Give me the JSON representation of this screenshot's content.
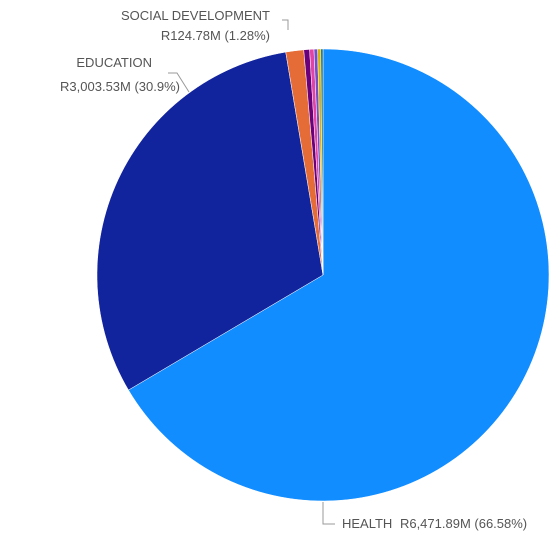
{
  "chart_data": {
    "type": "pie",
    "start_angle_deg": 0,
    "direction": "clockwise",
    "slices": [
      {
        "name": "HEALTH",
        "value": 6471.89,
        "percent": 66.58,
        "value_label": "R6,471.89M (66.58%)",
        "color": "#118DFF",
        "labeled": true
      },
      {
        "name": "EDUCATION",
        "value": 3003.53,
        "percent": 30.9,
        "value_label": "R3,003.53M (30.9%)",
        "color": "#12239E",
        "labeled": true
      },
      {
        "name": "SOCIAL DEVELOPMENT",
        "value": 124.78,
        "percent": 1.28,
        "value_label": "R124.78M (1.28%)",
        "color": "#E66C37",
        "labeled": true
      },
      {
        "name": "",
        "value": 40,
        "percent": 0.41,
        "value_label": "",
        "color": "#6B007B",
        "labeled": false
      },
      {
        "name": "",
        "value": 30,
        "percent": 0.31,
        "value_label": "",
        "color": "#E044A7",
        "labeled": false
      },
      {
        "name": "",
        "value": 25,
        "percent": 0.26,
        "value_label": "",
        "color": "#744EC2",
        "labeled": false
      },
      {
        "name": "",
        "value": 22,
        "percent": 0.23,
        "value_label": "",
        "color": "#D9B300",
        "labeled": false
      },
      {
        "name": "",
        "value": 15,
        "percent": 0.15,
        "value_label": "",
        "color": "#197278",
        "labeled": false
      }
    ],
    "legend": "none"
  }
}
